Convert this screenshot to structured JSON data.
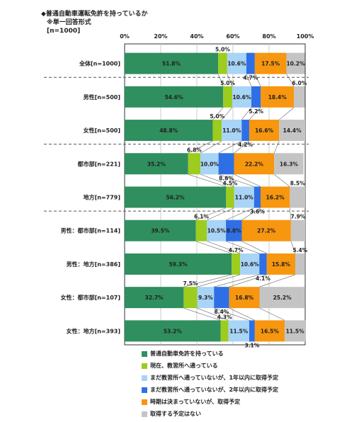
{
  "chart_data": {
    "type": "bar",
    "orientation": "horizontal",
    "stacked": true,
    "title": "◆普通自動車運転免許を持っているか",
    "subtitle": "※単一回答形式",
    "n_note": "[n=1000]",
    "xlim": [
      0,
      100
    ],
    "x_ticks": [
      "0%",
      "20%",
      "40%",
      "60%",
      "80%",
      "100%"
    ],
    "grid": true,
    "legend_position": "bottom",
    "categories": [
      "全体[n=1000]",
      "男性[n=500]",
      "女性[n=500]",
      "都市部[n=221]",
      "地方[n=779]",
      "男性：都市部[n=114]",
      "男性：地方[n=386]",
      "女性：都市部[n=107]",
      "女性：地方[n=393]"
    ],
    "series": [
      {
        "name": "普通自動車免許を持っている",
        "color": "#2f8f5e",
        "values": [
          51.8,
          54.6,
          48.8,
          35.2,
          56.2,
          39.5,
          59.3,
          32.7,
          53.2
        ],
        "labels": [
          "51.8%",
          "54.6%",
          "48.8%",
          "35.2%",
          "56.2%",
          "39.5%",
          "59.3%",
          "32.7%",
          "53.2%"
        ]
      },
      {
        "name": "現在、教習所へ通っている",
        "color": "#9ccc1e",
        "values": [
          5.0,
          5.0,
          5.0,
          6.8,
          4.5,
          6.1,
          4.7,
          7.5,
          4.3
        ],
        "labels": [
          "5.0%",
          "5.0%",
          "5.0%",
          "6.8%",
          "4.5%",
          "6.1%",
          "4.7%",
          "7.5%",
          "4.3%"
        ]
      },
      {
        "name": "まだ教習所へ通っていないが、1年以内に取得予定",
        "color": "#a8d4f6",
        "values": [
          10.6,
          10.6,
          11.0,
          10.0,
          11.0,
          10.5,
          10.6,
          9.3,
          11.5
        ],
        "labels": [
          "10.6%",
          "10.6%",
          "11.0%",
          "10.0%",
          "11.0%",
          "10.5%",
          "10.6%",
          "9.3%",
          "11.5%"
        ]
      },
      {
        "name": "まだ教習所へ通っていないが、2年以内に取得予定",
        "color": "#2f6fe6",
        "values": [
          4.7,
          5.2,
          4.2,
          8.6,
          3.6,
          8.8,
          4.1,
          8.4,
          3.1
        ],
        "labels": [
          "4.7%",
          "5.2%",
          "4.2%",
          "8.6%",
          "3.6%",
          "8.8%",
          "4.1%",
          "8.4%",
          "3.1%"
        ]
      },
      {
        "name": "時期は決まっていないが、取得予定",
        "color": "#f7960f",
        "values": [
          17.5,
          18.4,
          16.6,
          22.2,
          16.2,
          27.2,
          15.8,
          16.8,
          16.5
        ],
        "labels": [
          "17.5%",
          "18.4%",
          "16.6%",
          "22.2%",
          "16.2%",
          "27.2%",
          "15.8%",
          "16.8%",
          "16.5%"
        ]
      },
      {
        "name": "取得する予定はない",
        "color": "#c4c4c4",
        "values": [
          10.2,
          6.0,
          14.4,
          16.3,
          8.5,
          7.9,
          5.4,
          25.2,
          11.5
        ],
        "labels": [
          "10.2%",
          "6.0%",
          "14.4%",
          "16.3%",
          "8.5%",
          "7.9%",
          "5.4%",
          "25.2%",
          "11.5%"
        ]
      }
    ],
    "group_separators_after": [
      0,
      2,
      4
    ]
  }
}
